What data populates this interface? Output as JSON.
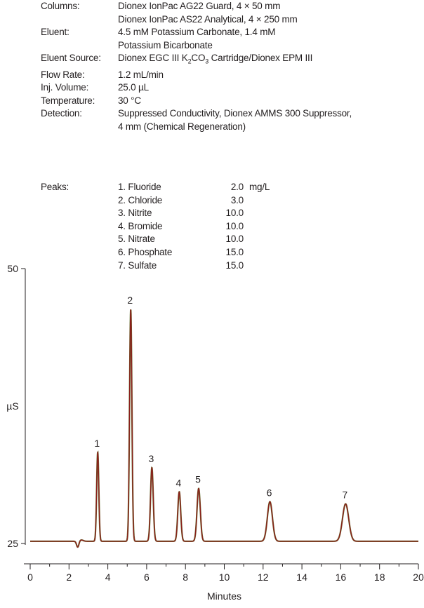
{
  "conditions": {
    "columns_label": "Columns:",
    "columns_1": "Dionex IonPac AG22 Guard, 4 × 50 mm",
    "columns_2": "Dionex IonPac AS22 Analytical, 4 × 250 mm",
    "eluent_label": "Eluent:",
    "eluent_1": "4.5 mM Potassium Carbonate, 1.4 mM",
    "eluent_2": "Potassium Bicarbonate",
    "eluent_source_label": "Eluent Source:",
    "eluent_source_pre": "Dionex EGC III K",
    "eluent_source_sub1": "2",
    "eluent_source_mid": "CO",
    "eluent_source_sub2": "3",
    "eluent_source_post": " Cartridge/Dionex EPM III",
    "flow_rate_label": "Flow Rate:",
    "flow_rate": "1.2 mL/min",
    "inj_volume_label": "Inj. Volume:",
    "inj_volume": "25.0 µL",
    "temperature_label": "Temperature:",
    "temperature": "30 °C",
    "detection_label": "Detection:",
    "detection_1": "Suppressed Conductivity, Dionex AMMS 300 Suppressor,",
    "detection_2": "4 mm (Chemical Regeneration)"
  },
  "peaks": {
    "label": "Peaks:",
    "unit": "mg/L",
    "list": [
      {
        "name": "1. Fluoride",
        "conc": "2.0"
      },
      {
        "name": "2. Chloride",
        "conc": "3.0"
      },
      {
        "name": "3. Nitrite",
        "conc": "10.0"
      },
      {
        "name": "4. Bromide",
        "conc": "10.0"
      },
      {
        "name": "5. Nitrate",
        "conc": "10.0"
      },
      {
        "name": "6. Phosphate",
        "conc": "15.0"
      },
      {
        "name": "7. Sulfate",
        "conc": "15.0"
      }
    ]
  },
  "chart_data": {
    "type": "line",
    "title": "",
    "xlabel": "Minutes",
    "ylabel": "µS",
    "xlim": [
      0,
      20
    ],
    "ylim": [
      25,
      50
    ],
    "x_ticks": [
      "0",
      "2",
      "4",
      "6",
      "8",
      "10",
      "12",
      "14",
      "16",
      "18",
      "20"
    ],
    "y_ticks": [
      "25",
      "50"
    ],
    "grid": false,
    "colors": {
      "trace": "#8b1e1a",
      "trace_overlay": "#6a7a3a",
      "axis": "#231f20"
    },
    "baseline": 25.2,
    "dip": {
      "x": 2.45,
      "depth": 0.55,
      "width": 0.06
    },
    "peaks": [
      {
        "label": "1",
        "x": 3.48,
        "height": 33.3,
        "width": 0.055
      },
      {
        "label": "2",
        "x": 5.18,
        "height": 46.3,
        "width": 0.06
      },
      {
        "label": "3",
        "x": 6.27,
        "height": 31.9,
        "width": 0.07
      },
      {
        "label": "4",
        "x": 7.68,
        "height": 29.7,
        "width": 0.075
      },
      {
        "label": "5",
        "x": 8.68,
        "height": 30.0,
        "width": 0.085
      },
      {
        "label": "6",
        "x": 12.35,
        "height": 28.8,
        "width": 0.13
      },
      {
        "label": "7",
        "x": 16.25,
        "height": 28.6,
        "width": 0.16
      }
    ]
  }
}
